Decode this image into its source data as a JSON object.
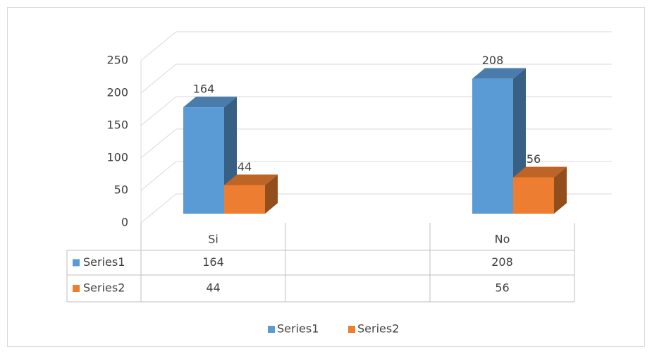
{
  "chart_data": {
    "type": "bar",
    "categories": [
      "Si",
      null,
      "No"
    ],
    "series": [
      {
        "name": "Series1",
        "color": "#5b9bd5",
        "values": [
          164,
          null,
          208
        ]
      },
      {
        "name": "Series2",
        "color": "#ed7d31",
        "values": [
          44,
          null,
          56
        ]
      }
    ],
    "ylim": [
      0,
      250
    ],
    "yticks": [
      0,
      50,
      100,
      150,
      200,
      250
    ],
    "grid": true,
    "legend": "bottom",
    "data_table": true
  }
}
